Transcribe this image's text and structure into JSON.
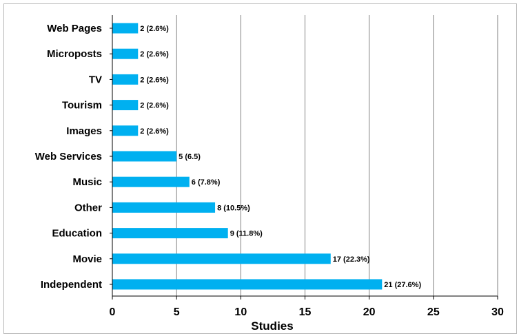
{
  "chart_data": {
    "type": "bar",
    "orientation": "horizontal",
    "categories": [
      "Web Pages",
      "Microposts",
      "TV",
      "Tourism",
      "Images",
      "Web Services",
      "Music",
      "Other",
      "Education",
      "Movie",
      "Independent"
    ],
    "values": [
      2,
      2,
      2,
      2,
      2,
      5,
      6,
      8,
      9,
      17,
      21
    ],
    "data_labels": [
      "2 (2.6%)",
      "2 (2.6%)",
      "2 (2.6%)",
      "2 (2.6%)",
      "2 (2.6%)",
      "5 (6.5)",
      "6 (7.8%)",
      "8 (10.5%)",
      "9 (11.8%)",
      "17 (22.3%)",
      "21 (27.6%)"
    ],
    "title": "",
    "xlabel": "Studies",
    "ylabel": "",
    "xlim": [
      0,
      30
    ],
    "x_ticks": [
      0,
      5,
      10,
      15,
      20,
      25,
      30
    ],
    "grid": "vertical",
    "legend": "none",
    "bar_color": "#00b0f0",
    "grid_color": "#7f7f7f"
  }
}
